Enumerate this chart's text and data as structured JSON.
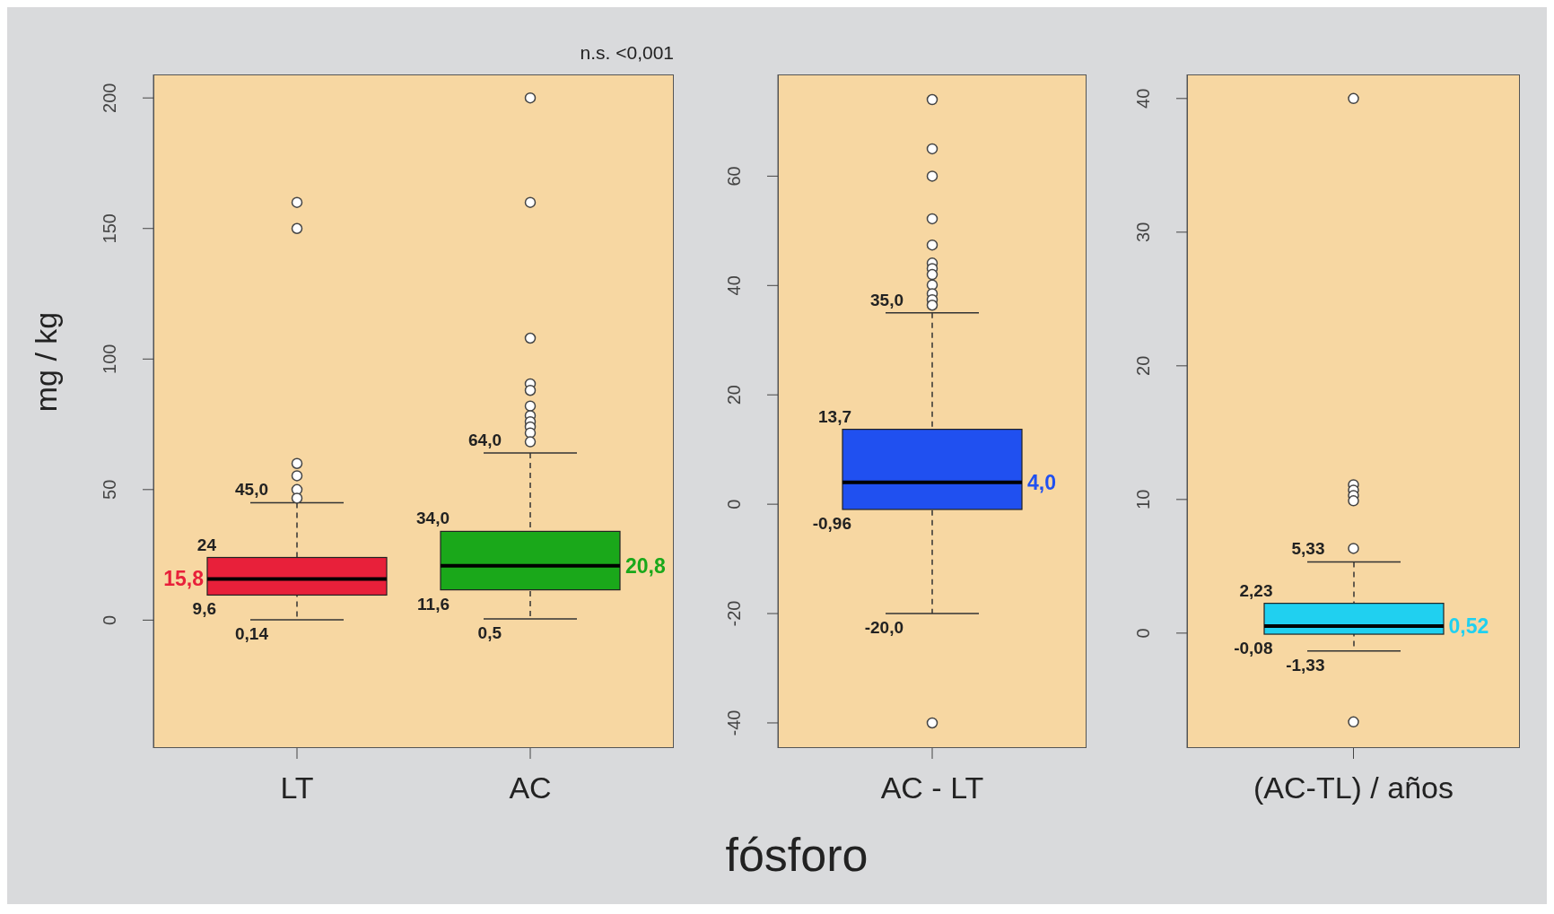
{
  "chart_data": [
    {
      "type": "box",
      "ylabel": "mg / kg",
      "categories": [
        "LT",
        "AC"
      ],
      "colors": [
        "#e8203a",
        "#1aa81a"
      ],
      "ylim": [
        -49,
        209
      ],
      "yticks": [
        0,
        50,
        100,
        150,
        200
      ],
      "boxes": [
        {
          "low": 0.14,
          "q1": 9.6,
          "median": 15.8,
          "q3": 24,
          "high": 45.0,
          "outliers": [
            160,
            150,
            60,
            55.3,
            50,
            46.7
          ]
        },
        {
          "low": 0.5,
          "q1": 11.6,
          "median": 20.8,
          "q3": 34.0,
          "high": 64.0,
          "outliers": [
            200,
            160,
            108,
            90.5,
            88,
            82,
            78.3,
            76,
            74,
            71.7,
            68.3
          ]
        }
      ],
      "annotations": [
        "n.s. <0,001",
        "24",
        "15,8",
        "9,6",
        "34,0",
        "20,8",
        "11,6",
        {
          "text": "45,0",
          "x": "LT",
          "y": 45.0
        },
        {
          "text": "0,14",
          "x": "LT",
          "y": 0.14
        },
        {
          "text": "64,0",
          "x": "AC",
          "y": 64.0
        },
        {
          "text": "0,5",
          "x": "AC",
          "y": 0.5
        }
      ]
    },
    {
      "type": "box",
      "xlabel": "fósforo",
      "categories": [
        "AC - LT"
      ],
      "colors": [
        "#2050f0"
      ],
      "ylim": [
        -44.6,
        78.6
      ],
      "yticks": [
        -40,
        -20,
        0,
        20,
        40,
        60
      ],
      "boxes": [
        {
          "low": -20.0,
          "q1": -0.96,
          "median": 4.0,
          "q3": 13.7,
          "high": 35.0,
          "outliers": [
            74,
            65,
            60,
            52.2,
            47.4,
            44.1,
            43.1,
            42,
            40.1,
            38.5,
            37.4,
            36.4,
            -40
          ]
        }
      ],
      "annotations": [
        "13,7",
        "4,0",
        "-0,96",
        {
          "text": "35,0",
          "x": "AC - LT",
          "y": 35.0
        },
        {
          "text": "-20,0",
          "x": "AC - LT",
          "y": -20.0
        }
      ]
    },
    {
      "type": "box",
      "categories": [
        "(AC-TL) / años"
      ],
      "colors": [
        "#20d0f0"
      ],
      "ylim": [
        -8.6,
        41.8
      ],
      "yticks": [
        0,
        10,
        20,
        30,
        40
      ],
      "boxes": [
        {
          "low": -1.33,
          "q1": -0.08,
          "median": 0.52,
          "q3": 2.23,
          "high": 5.33,
          "outliers": [
            40,
            11.1,
            10.7,
            10.3,
            9.9,
            6.34,
            -6.64
          ]
        }
      ],
      "annotations": [
        "2,23",
        "0,52",
        "-0,08",
        {
          "text": "5,33",
          "x": "(AC-TL) / años",
          "y": 5.33
        },
        {
          "text": "-1,33",
          "x": "(AC-TL) / años",
          "y": -1.33
        }
      ]
    }
  ]
}
